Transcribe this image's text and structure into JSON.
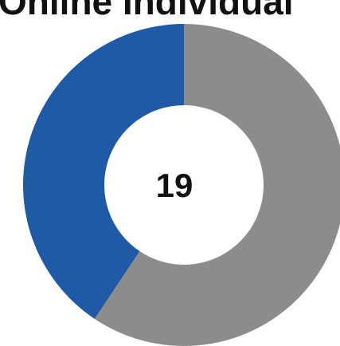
{
  "chart_data": {
    "type": "donut",
    "title": "Online Individual",
    "values": [
      19,
      13
    ],
    "colors": [
      "#8c8c8c",
      "#1f5aa6"
    ],
    "center_value_index": 0
  }
}
